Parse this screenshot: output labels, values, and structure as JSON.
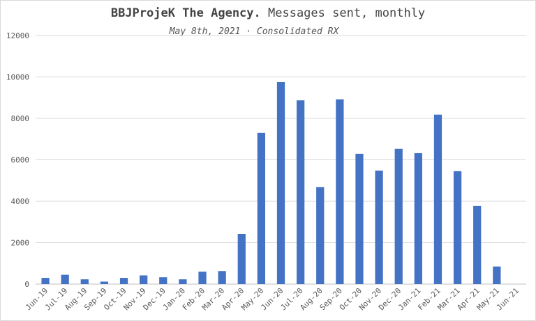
{
  "chart_data": {
    "type": "bar",
    "title_bold": "BBJProjeK The Agency.",
    "title_rest": " Messages sent, monthly",
    "subtitle": "May 8th, 2021 · Consolidated RX",
    "xlabel": "",
    "ylabel": "",
    "ylim": [
      0,
      12000
    ],
    "yticks": [
      0,
      2000,
      4000,
      6000,
      8000,
      10000,
      12000
    ],
    "grid": true,
    "legend": "none",
    "bar_color": "#4472c4",
    "categories": [
      "Jun-19",
      "Jul-19",
      "Aug-19",
      "Sep-19",
      "Oct-19",
      "Nov-19",
      "Dec-19",
      "Jan-20",
      "Feb-20",
      "Mar-20",
      "Apr-20",
      "May-20",
      "Jun-20",
      "Jul-20",
      "Aug-20",
      "Sep-20",
      "Oct-20",
      "Nov-20",
      "Dec-20",
      "Jan-21",
      "Feb-21",
      "Mar-21",
      "Apr-21",
      "May-21",
      "Jun-21"
    ],
    "values": [
      300,
      450,
      230,
      120,
      300,
      420,
      330,
      230,
      600,
      630,
      2420,
      7300,
      9750,
      8870,
      4680,
      8920,
      6290,
      5480,
      6530,
      6320,
      8180,
      5450,
      3770,
      850,
      0
    ]
  }
}
